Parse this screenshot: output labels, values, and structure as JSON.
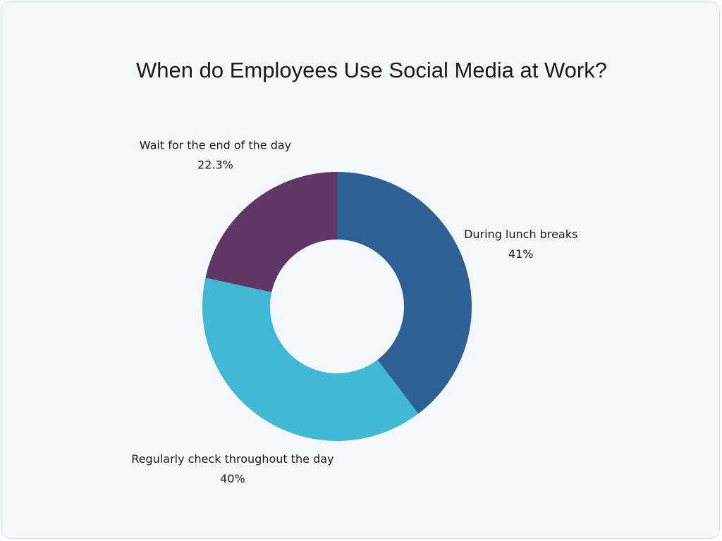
{
  "chart_data": {
    "type": "donut",
    "title": "When do Employees Use Social Media at Work?",
    "categories": [
      "During lunch breaks",
      "Regularly check throughout the day",
      "Wait for the end of the day"
    ],
    "values": [
      41,
      40,
      22.3
    ],
    "value_labels": [
      "41%",
      "40%",
      "22.3%"
    ],
    "colors": [
      "#2e6096",
      "#42b8d6",
      "#5e3766"
    ]
  }
}
